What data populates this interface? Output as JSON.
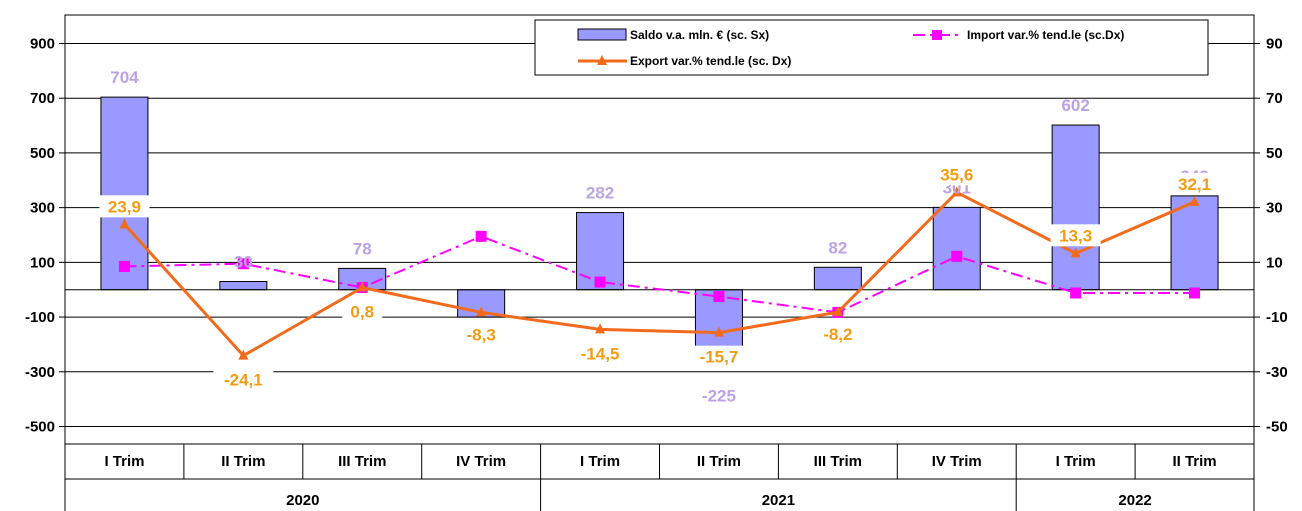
{
  "chart_data": {
    "type": "bar",
    "categories": [
      "I Trim",
      "II Trim",
      "III Trim",
      "IV Trim",
      "I Trim",
      "II Trim",
      "III Trim",
      "IV Trim",
      "I Trim",
      "II Trim"
    ],
    "groups": [
      {
        "label": "2020",
        "count": 4
      },
      {
        "label": "2021",
        "count": 4
      },
      {
        "label": "2022",
        "count": 2
      }
    ],
    "y_left": {
      "ticks": [
        "900",
        "700",
        "500",
        "300",
        "100",
        "-100",
        "-300",
        "-500"
      ],
      "min": -500,
      "max": 900
    },
    "y_right": {
      "ticks": [
        "90",
        "70",
        "50",
        "30",
        "10",
        "-10",
        "-30",
        "-50"
      ],
      "min": -50,
      "max": 90
    },
    "series": [
      {
        "name": "Saldo v.a. mln. € (sc. Sx)",
        "type": "bar",
        "axis": "left",
        "color": "#9999FF",
        "values": [
          704,
          30,
          78,
          -100,
          282,
          -225,
          82,
          301,
          602,
          343
        ],
        "labels": [
          "704",
          "30",
          "78",
          "",
          "282",
          "-225",
          "82",
          "301",
          "602",
          "343"
        ]
      },
      {
        "name": "Import var.% tend.le (sc.Dx)",
        "type": "line",
        "axis": "right",
        "color": "#FF00FF",
        "style": "dash-dot",
        "marker": "square",
        "values": [
          8.5,
          9.5,
          0.8,
          19.5,
          2.8,
          -2.5,
          -8.3,
          12.2,
          -1.2,
          -1.2
        ]
      },
      {
        "name": "Export var.% tend.le (sc. Dx)",
        "type": "line",
        "axis": "right",
        "color": "#F26B1D",
        "marker": "triangle",
        "values": [
          23.9,
          -24.1,
          0.8,
          -8.3,
          -14.5,
          -15.7,
          -8.2,
          35.6,
          13.3,
          32.1
        ],
        "labels": [
          "23,9",
          "-24,1",
          "0,8",
          "-8,3",
          "-14,5",
          "-15,7",
          "-8,2",
          "35,6",
          "13,3",
          "32,1"
        ]
      }
    ],
    "legend_position": "top-right",
    "grid": true
  }
}
